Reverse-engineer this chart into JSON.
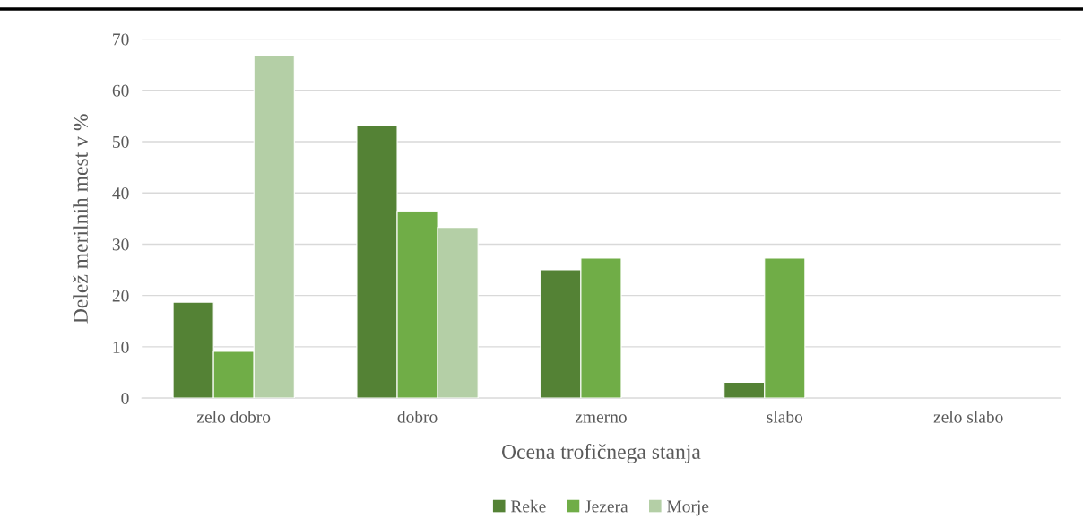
{
  "chart_data": {
    "type": "bar",
    "xlabel": "Ocena trofičnega stanja",
    "ylabel": "Delež merilnih mest v %",
    "categories": [
      "zelo dobro",
      "dobro",
      "zmerno",
      "slabo",
      "zelo slabo"
    ],
    "series": [
      {
        "name": "Reke",
        "color": "#548235",
        "values": [
          18.7,
          53.1,
          25.0,
          3.1,
          0
        ]
      },
      {
        "name": "Jezera",
        "color": "#70ad47",
        "values": [
          9.1,
          36.4,
          27.3,
          27.3,
          0
        ]
      },
      {
        "name": "Morje",
        "color": "#b4cfa6",
        "values": [
          66.7,
          33.3,
          0,
          0,
          0
        ]
      }
    ],
    "ylim": [
      0,
      70
    ],
    "yticks": [
      0,
      10,
      20,
      30,
      40,
      50,
      60,
      70
    ],
    "grid": "y",
    "legend": "bottom"
  }
}
